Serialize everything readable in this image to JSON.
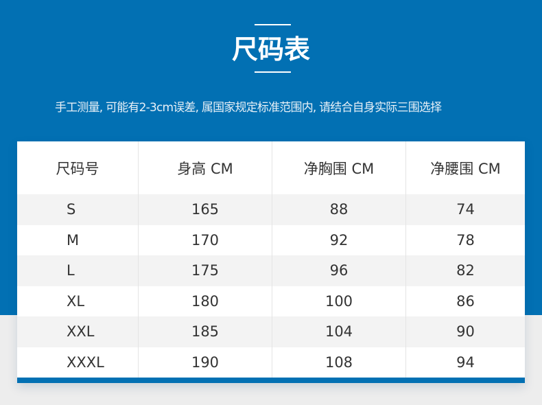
{
  "title": "尺码表",
  "subtitle": "手工测量, 可能有2-3cm误差, 属国家规定标准范围内, 请结合自身实际三围选择",
  "colors": {
    "brand": "#0270b3",
    "background": "#ededed",
    "row_alt": "#f3f3f3"
  },
  "table": {
    "headers": [
      "尺码号",
      "身高 CM",
      "净胸围 CM",
      "净腰围 CM"
    ],
    "rows": [
      [
        "S",
        "165",
        "88",
        "74"
      ],
      [
        "M",
        "170",
        "92",
        "78"
      ],
      [
        "L",
        "175",
        "96",
        "82"
      ],
      [
        "XL",
        "180",
        "100",
        "86"
      ],
      [
        "XXL",
        "185",
        "104",
        "90"
      ],
      [
        "XXXL",
        "190",
        "108",
        "94"
      ]
    ]
  }
}
